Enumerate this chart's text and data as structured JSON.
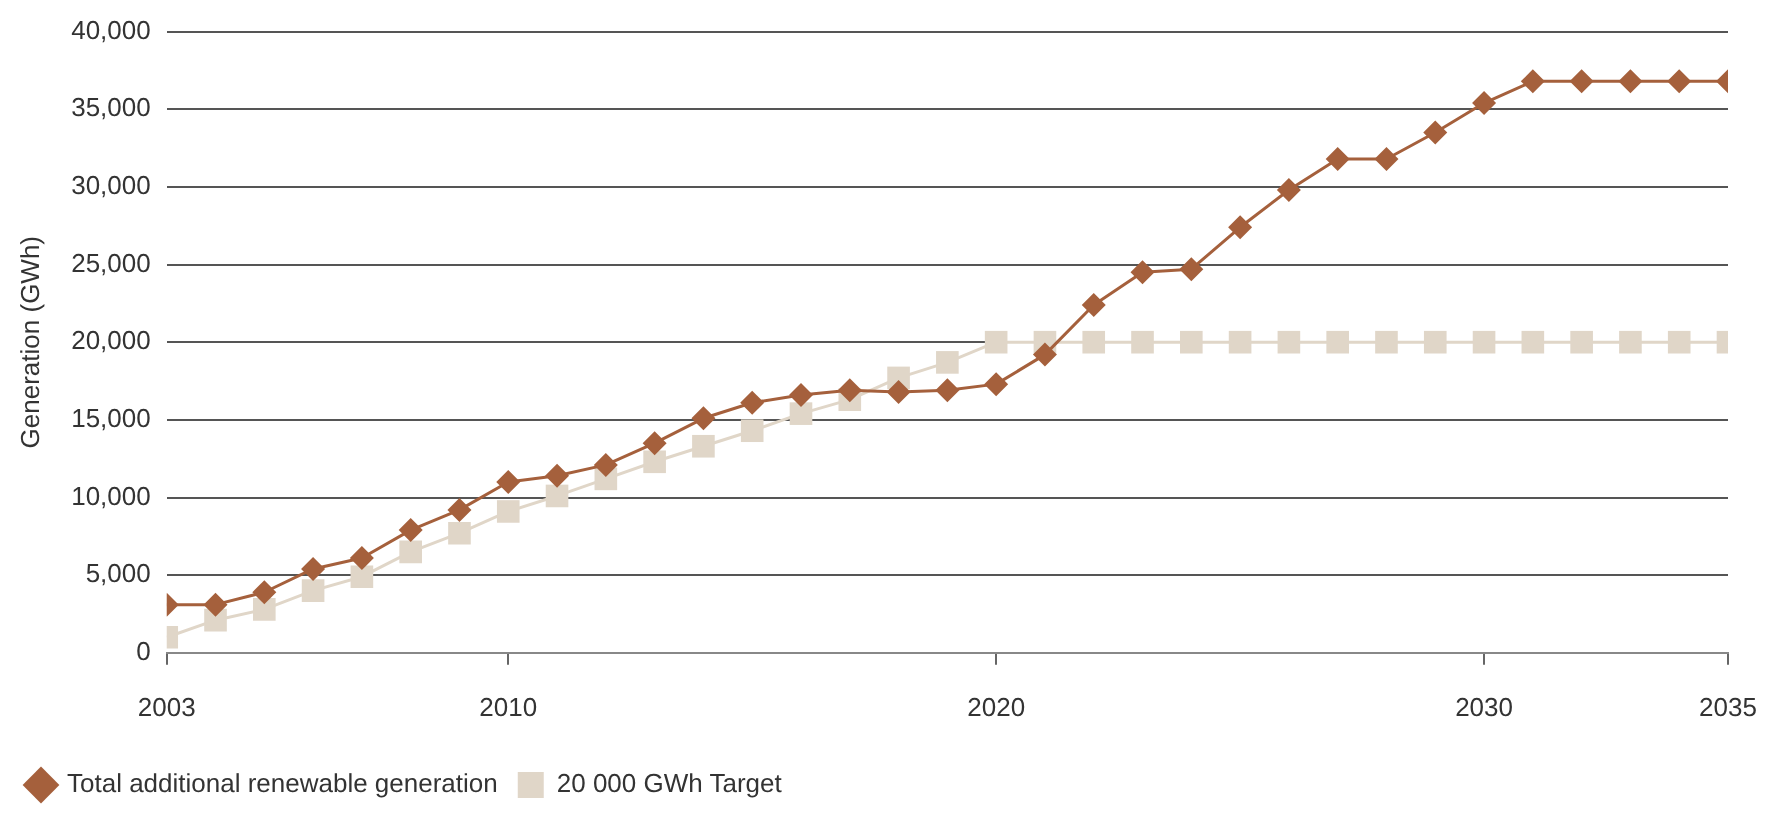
{
  "chart_data": {
    "type": "line",
    "ylabel": "Generation (GWh)",
    "x": [
      2003,
      2004,
      2005,
      2006,
      2007,
      2008,
      2009,
      2010,
      2011,
      2012,
      2013,
      2014,
      2015,
      2016,
      2017,
      2018,
      2019,
      2020,
      2021,
      2022,
      2023,
      2024,
      2025,
      2026,
      2027,
      2028,
      2029,
      2030,
      2031,
      2032,
      2033,
      2034,
      2035
    ],
    "series": [
      {
        "name": "Total additional renewable generation",
        "color": "#a5603c",
        "marker": "diamond",
        "values": [
          3100,
          3100,
          3900,
          5400,
          6100,
          7900,
          9200,
          11000,
          11400,
          12100,
          13500,
          15100,
          16100,
          16600,
          16900,
          16800,
          16900,
          17300,
          19200,
          22400,
          24500,
          24700,
          27400,
          29800,
          31800,
          31800,
          33500,
          35400,
          36800,
          36800,
          36800,
          36800,
          36800
        ]
      },
      {
        "name": "20 000 GWh Target",
        "color": "#e0d6c8",
        "marker": "square",
        "values": [
          1000,
          2100,
          2800,
          4000,
          4900,
          6500,
          7700,
          9100,
          10100,
          11200,
          12300,
          13300,
          14300,
          15400,
          16300,
          17700,
          18700,
          20000,
          20000,
          20000,
          20000,
          20000,
          20000,
          20000,
          20000,
          20000,
          20000,
          20000,
          20000,
          20000,
          20000,
          20000,
          20000
        ]
      }
    ],
    "xlim": [
      2003,
      2035
    ],
    "xticks": [
      2003,
      2010,
      2020,
      2030,
      2035
    ],
    "ylim": [
      0,
      40000
    ],
    "yticks": [
      0,
      {
        "value": 5000,
        "label": "5,000"
      },
      {
        "value": 10000,
        "label": "10,000"
      },
      {
        "value": 15000,
        "label": "15,000"
      },
      {
        "value": 20000,
        "label": "20,000"
      },
      {
        "value": 25000,
        "label": "25,000"
      },
      {
        "value": 30000,
        "label": "30,000"
      },
      {
        "value": 35000,
        "label": "35,000"
      },
      {
        "value": 40000,
        "label": "40,000"
      }
    ],
    "grid": "y",
    "legend": "bottom left",
    "line_style": "solid"
  }
}
